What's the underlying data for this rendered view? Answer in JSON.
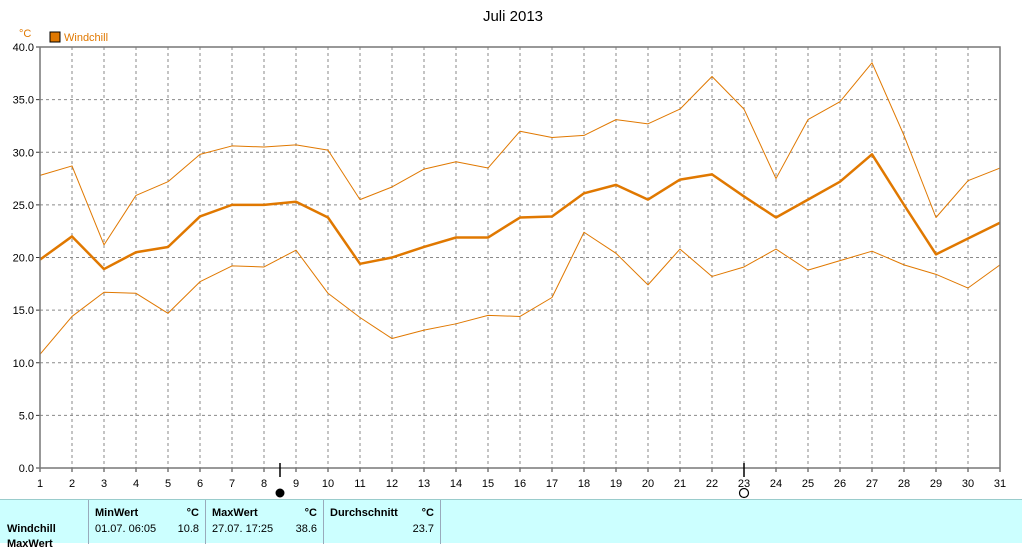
{
  "chart_data": {
    "type": "line",
    "title": "Juli 2013",
    "ylabel": "°C",
    "legend": {
      "entries": [
        "Windchill"
      ],
      "placement": "top-left",
      "color": "#e07800"
    },
    "x": [
      1,
      2,
      3,
      4,
      5,
      6,
      7,
      8,
      9,
      10,
      11,
      12,
      13,
      14,
      15,
      16,
      17,
      18,
      19,
      20,
      21,
      22,
      23,
      24,
      25,
      26,
      27,
      28,
      29,
      30,
      31
    ],
    "x_tick_labels": [
      "1",
      "2",
      "3",
      "4",
      "5",
      "6",
      "7",
      "8",
      "9",
      "10",
      "11",
      "12",
      "13",
      "14",
      "15",
      "16",
      "17",
      "18",
      "19",
      "20",
      "21",
      "22",
      "23",
      "24",
      "25",
      "26",
      "27",
      "28",
      "29",
      "30",
      "31"
    ],
    "ylim": [
      0,
      40
    ],
    "y_ticks": [
      0,
      5,
      10,
      15,
      20,
      25,
      30,
      35,
      40
    ],
    "y_tick_labels": [
      "0.0",
      "5.0",
      "10.0",
      "15.0",
      "20.0",
      "25.0",
      "30.0",
      "35.0",
      "40.0"
    ],
    "grid": true,
    "series": [
      {
        "name": "Windchill",
        "role": "average",
        "color": "#e07800",
        "values": [
          19.8,
          22.0,
          18.9,
          20.5,
          21.0,
          23.9,
          25.0,
          25.0,
          25.3,
          23.8,
          19.4,
          20.0,
          21.0,
          21.9,
          21.9,
          23.8,
          23.9,
          26.1,
          26.9,
          25.5,
          27.4,
          27.9,
          25.8,
          23.8,
          25.5,
          27.2,
          29.8,
          25.0,
          20.3,
          21.8,
          23.3
        ]
      },
      {
        "role": "max",
        "color": "#e07800",
        "values": [
          27.8,
          28.7,
          21.2,
          25.9,
          27.2,
          29.8,
          30.6,
          30.5,
          30.7,
          30.2,
          25.5,
          26.7,
          28.4,
          29.1,
          28.5,
          32.0,
          31.4,
          31.6,
          33.1,
          32.7,
          34.1,
          37.2,
          34.1,
          27.5,
          33.1,
          34.8,
          38.5,
          31.6,
          23.8,
          27.3,
          28.5
        ]
      },
      {
        "role": "min",
        "color": "#e07800",
        "values": [
          10.8,
          14.4,
          16.7,
          16.6,
          14.7,
          17.7,
          19.2,
          19.1,
          20.7,
          16.6,
          14.3,
          12.3,
          13.1,
          13.7,
          14.5,
          14.4,
          16.2,
          22.4,
          20.4,
          17.4,
          20.8,
          18.2,
          19.1,
          20.8,
          18.8,
          19.7,
          20.6,
          19.3,
          18.4,
          17.1,
          19.3
        ]
      }
    ],
    "moon_phases": [
      {
        "day": 8.5,
        "phase": "new-moon"
      },
      {
        "day": 23,
        "phase": "full-moon"
      }
    ]
  },
  "stats": {
    "row_label": "Windchill",
    "row_label_2": "MaxWert",
    "minwert": {
      "header": "MinWert",
      "unit": "°C",
      "date": "01.07.  06:05",
      "value": "10.8"
    },
    "maxwert": {
      "header": "MaxWert",
      "unit": "°C",
      "date": "27.07.  17:25",
      "value": "38.6"
    },
    "durchschnitt": {
      "header": "Durchschnitt",
      "unit": "°C",
      "value": "23.7"
    }
  }
}
